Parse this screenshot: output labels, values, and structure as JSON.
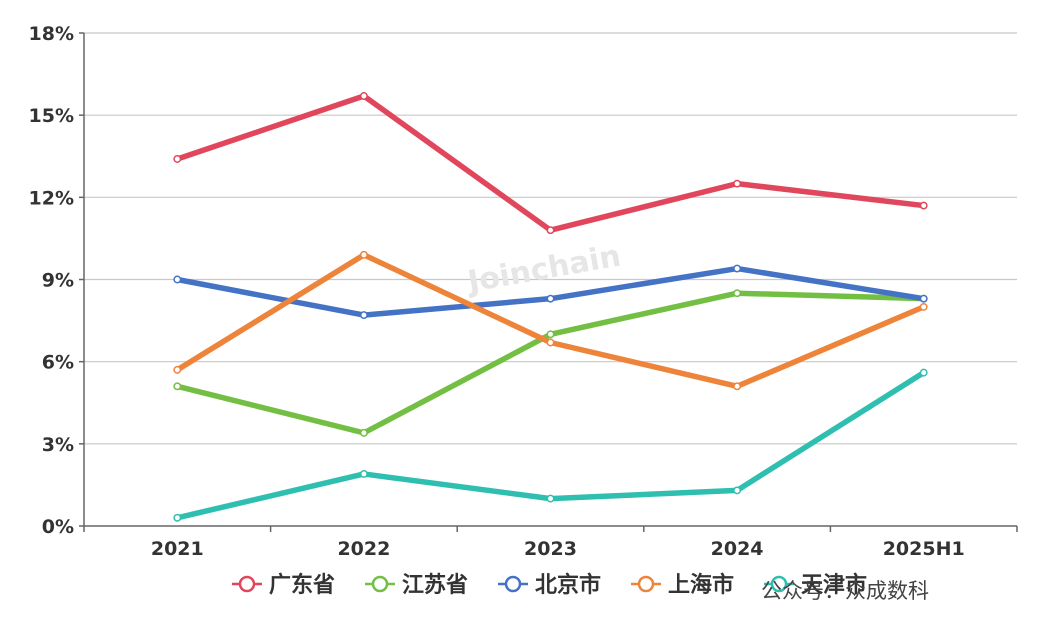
{
  "chart_data": {
    "type": "line",
    "categories": [
      "2021",
      "2022",
      "2023",
      "2024",
      "2025H1"
    ],
    "y_ticks": [
      "0%",
      "3%",
      "6%",
      "9%",
      "12%",
      "15%",
      "18%"
    ],
    "ylim": [
      0,
      18
    ],
    "grid": true,
    "legend_position": "bottom",
    "series": [
      {
        "name": "广东省",
        "color": "#e0475c",
        "values": [
          13.4,
          15.7,
          10.8,
          12.5,
          11.7
        ]
      },
      {
        "name": "江苏省",
        "color": "#72bf44",
        "values": [
          5.1,
          3.4,
          7.0,
          8.5,
          8.3
        ]
      },
      {
        "name": "北京市",
        "color": "#4472c4",
        "values": [
          9.0,
          7.7,
          8.3,
          9.4,
          8.3
        ]
      },
      {
        "name": "上海市",
        "color": "#ed843a",
        "values": [
          5.7,
          9.9,
          6.7,
          5.1,
          8.0
        ]
      },
      {
        "name": "天津市",
        "color": "#2fbfb0",
        "values": [
          0.3,
          1.9,
          1.0,
          1.3,
          5.6
        ]
      }
    ]
  },
  "watermark": "Joinchain",
  "source_note": "公众号：众成数科"
}
